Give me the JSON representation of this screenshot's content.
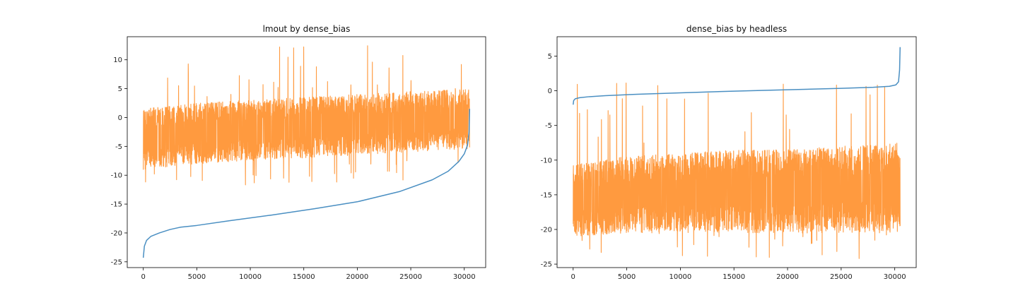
{
  "chart_data": [
    {
      "type": "line",
      "title": "lmout by dense_bias",
      "xlabel": "",
      "ylabel": "",
      "xlim": [
        -1500,
        32000
      ],
      "ylim": [
        -26,
        14
      ],
      "xticks": [
        0,
        5000,
        10000,
        15000,
        20000,
        25000,
        30000
      ],
      "yticks": [
        -25,
        -20,
        -15,
        -10,
        -5,
        0,
        5,
        10
      ],
      "grid": false,
      "legend": "none",
      "n_points": 30500,
      "series": [
        {
          "kind": "sorted-curve",
          "color": "#4a8fc2",
          "x": [
            0,
            100,
            300,
            700,
            1500,
            2500,
            3500,
            5000,
            8000,
            12000,
            16000,
            20000,
            24000,
            27000,
            28500,
            29500,
            30000,
            30300,
            30450,
            30500
          ],
          "y": [
            -24.3,
            -22.3,
            -21.3,
            -20.6,
            -20.0,
            -19.4,
            -19.0,
            -18.7,
            -17.9,
            -16.9,
            -15.8,
            -14.6,
            -12.8,
            -10.8,
            -9.3,
            -7.6,
            -6.3,
            -4.8,
            -2.5,
            1.5
          ]
        },
        {
          "kind": "noise-band",
          "color": "#ff9a3f",
          "x": [
            0,
            5000,
            10000,
            15000,
            20000,
            25000,
            30500
          ],
          "band_low": [
            -9,
            -8,
            -7.5,
            -7,
            -6.5,
            -6,
            -5.5
          ],
          "band_high": [
            1.5,
            2.5,
            3,
            3.5,
            4,
            4.5,
            5
          ],
          "spike_max": 12.8,
          "spike_min": -11.8
        }
      ]
    },
    {
      "type": "line",
      "title": "dense_bias by headless",
      "xlabel": "",
      "ylabel": "",
      "xlim": [
        -1500,
        32000
      ],
      "ylim": [
        -25.5,
        7.8
      ],
      "xticks": [
        0,
        5000,
        10000,
        15000,
        20000,
        25000,
        30000
      ],
      "yticks": [
        -25,
        -20,
        -15,
        -10,
        -5,
        0,
        5
      ],
      "grid": false,
      "legend": "none",
      "n_points": 30500,
      "series": [
        {
          "kind": "sorted-curve",
          "color": "#4a8fc2",
          "x": [
            0,
            50,
            200,
            600,
            1500,
            3000,
            6000,
            10000,
            15000,
            20000,
            25000,
            28000,
            29500,
            30100,
            30350,
            30450,
            30500
          ],
          "y": [
            -2.0,
            -1.4,
            -1.15,
            -1.0,
            -0.85,
            -0.7,
            -0.5,
            -0.3,
            -0.05,
            0.15,
            0.35,
            0.5,
            0.65,
            0.85,
            1.3,
            3.0,
            6.3
          ]
        },
        {
          "kind": "noise-band",
          "color": "#ff9a3f",
          "x": [
            0,
            5000,
            10000,
            15000,
            20000,
            25000,
            30500
          ],
          "band_low": [
            -21,
            -20.5,
            -20.5,
            -20.5,
            -20.5,
            -20.5,
            -20.5
          ],
          "band_high": [
            -10.5,
            -9.5,
            -9,
            -8.5,
            -8.5,
            -8,
            -7.5
          ],
          "spike_max": 1.2,
          "spike_min": -24.3
        }
      ]
    }
  ]
}
